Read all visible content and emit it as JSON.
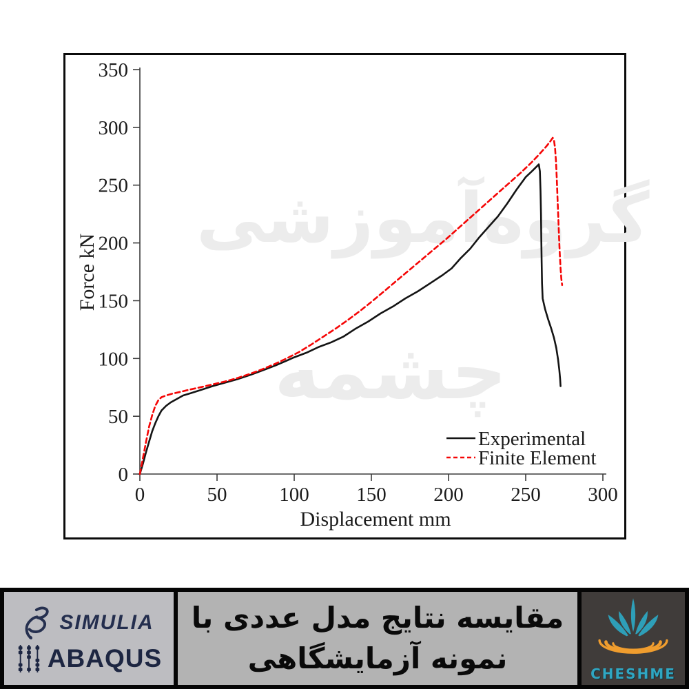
{
  "watermark": {
    "line1": "گروه‌آموزشی",
    "line2": "چشمه",
    "color": "#ececec"
  },
  "chart_data": {
    "type": "line",
    "title": "",
    "xlabel": "Displacement mm",
    "ylabel": "Force kN",
    "xlim": [
      0,
      300
    ],
    "ylim": [
      0,
      350
    ],
    "x_ticks": [
      0,
      50,
      100,
      150,
      200,
      250,
      300
    ],
    "y_ticks": [
      0,
      50,
      100,
      150,
      200,
      250,
      300,
      350
    ],
    "grid": false,
    "legend_position": "lower-right",
    "series": [
      {
        "name": "Experimental",
        "color": "#141414",
        "line_style": "solid",
        "points": [
          [
            0,
            0
          ],
          [
            2,
            9
          ],
          [
            4,
            19
          ],
          [
            6,
            28
          ],
          [
            8,
            37
          ],
          [
            10,
            44
          ],
          [
            12,
            50
          ],
          [
            14,
            55
          ],
          [
            17,
            59
          ],
          [
            20,
            62
          ],
          [
            24,
            65
          ],
          [
            28,
            68
          ],
          [
            33,
            70
          ],
          [
            40,
            73
          ],
          [
            47,
            76
          ],
          [
            55,
            79
          ],
          [
            63,
            82
          ],
          [
            72,
            86
          ],
          [
            80,
            90
          ],
          [
            88,
            94
          ],
          [
            95,
            98
          ],
          [
            100,
            101
          ],
          [
            108,
            105
          ],
          [
            116,
            110
          ],
          [
            124,
            114
          ],
          [
            132,
            119
          ],
          [
            140,
            126
          ],
          [
            148,
            132
          ],
          [
            156,
            139
          ],
          [
            164,
            145
          ],
          [
            172,
            152
          ],
          [
            180,
            158
          ],
          [
            188,
            165
          ],
          [
            196,
            172
          ],
          [
            202,
            178
          ],
          [
            208,
            187
          ],
          [
            214,
            195
          ],
          [
            220,
            205
          ],
          [
            226,
            214
          ],
          [
            232,
            223
          ],
          [
            238,
            234
          ],
          [
            244,
            246
          ],
          [
            250,
            257
          ],
          [
            254,
            262
          ],
          [
            257,
            266
          ],
          [
            258.5,
            268
          ],
          [
            259.2,
            262
          ],
          [
            259.6,
            245
          ],
          [
            259.9,
            225
          ],
          [
            260.1,
            205
          ],
          [
            260.3,
            185
          ],
          [
            260.6,
            165
          ],
          [
            261,
            152
          ],
          [
            262.5,
            143
          ],
          [
            264.5,
            134
          ],
          [
            266.5,
            126
          ],
          [
            268.3,
            118
          ],
          [
            269.8,
            109
          ],
          [
            271,
            99
          ],
          [
            271.8,
            90
          ],
          [
            272.3,
            82
          ],
          [
            272.6,
            76
          ]
        ]
      },
      {
        "name": "Finite Element",
        "color": "#f50505",
        "line_style": "dashed",
        "points": [
          [
            0,
            0
          ],
          [
            2,
            14
          ],
          [
            4,
            28
          ],
          [
            6,
            41
          ],
          [
            8,
            51
          ],
          [
            10,
            59
          ],
          [
            12,
            64
          ],
          [
            14,
            66.5
          ],
          [
            17,
            68
          ],
          [
            21,
            69.5
          ],
          [
            26,
            71
          ],
          [
            32,
            73
          ],
          [
            39,
            75
          ],
          [
            47,
            77.5
          ],
          [
            55,
            80
          ],
          [
            63,
            83
          ],
          [
            71,
            86.5
          ],
          [
            79,
            90.5
          ],
          [
            87,
            95
          ],
          [
            95,
            100
          ],
          [
            103,
            105.5
          ],
          [
            111,
            112
          ],
          [
            119,
            119
          ],
          [
            127,
            126
          ],
          [
            135,
            133.5
          ],
          [
            143,
            141.5
          ],
          [
            151,
            150
          ],
          [
            159,
            159
          ],
          [
            167,
            168
          ],
          [
            175,
            177
          ],
          [
            183,
            186
          ],
          [
            191,
            195
          ],
          [
            199,
            204
          ],
          [
            207,
            213.5
          ],
          [
            215,
            223
          ],
          [
            223,
            232.5
          ],
          [
            231,
            242
          ],
          [
            239,
            251.5
          ],
          [
            247,
            261
          ],
          [
            254,
            270
          ],
          [
            259,
            277
          ],
          [
            263,
            283
          ],
          [
            266,
            288
          ],
          [
            267.5,
            291
          ],
          [
            268.3,
            289
          ],
          [
            269,
            282
          ],
          [
            269.6,
            271
          ],
          [
            270.1,
            257
          ],
          [
            270.6,
            240
          ],
          [
            271.1,
            222
          ],
          [
            271.6,
            205
          ],
          [
            272.1,
            190
          ],
          [
            272.6,
            178
          ],
          [
            273.1,
            169
          ],
          [
            273.6,
            163.5
          ]
        ]
      }
    ]
  },
  "footer": {
    "simulia": {
      "brand": "SIMULIA",
      "product": "ABAQUS",
      "text_color": "#242e4e"
    },
    "title": {
      "line1": "مقایسه نتایج مدل عددی با",
      "line2": "نمونه آزمایشگاهی"
    },
    "cheshme": {
      "label": "CHESHME",
      "teal": "#2e9fb8",
      "orange": "#f09d2e"
    }
  }
}
